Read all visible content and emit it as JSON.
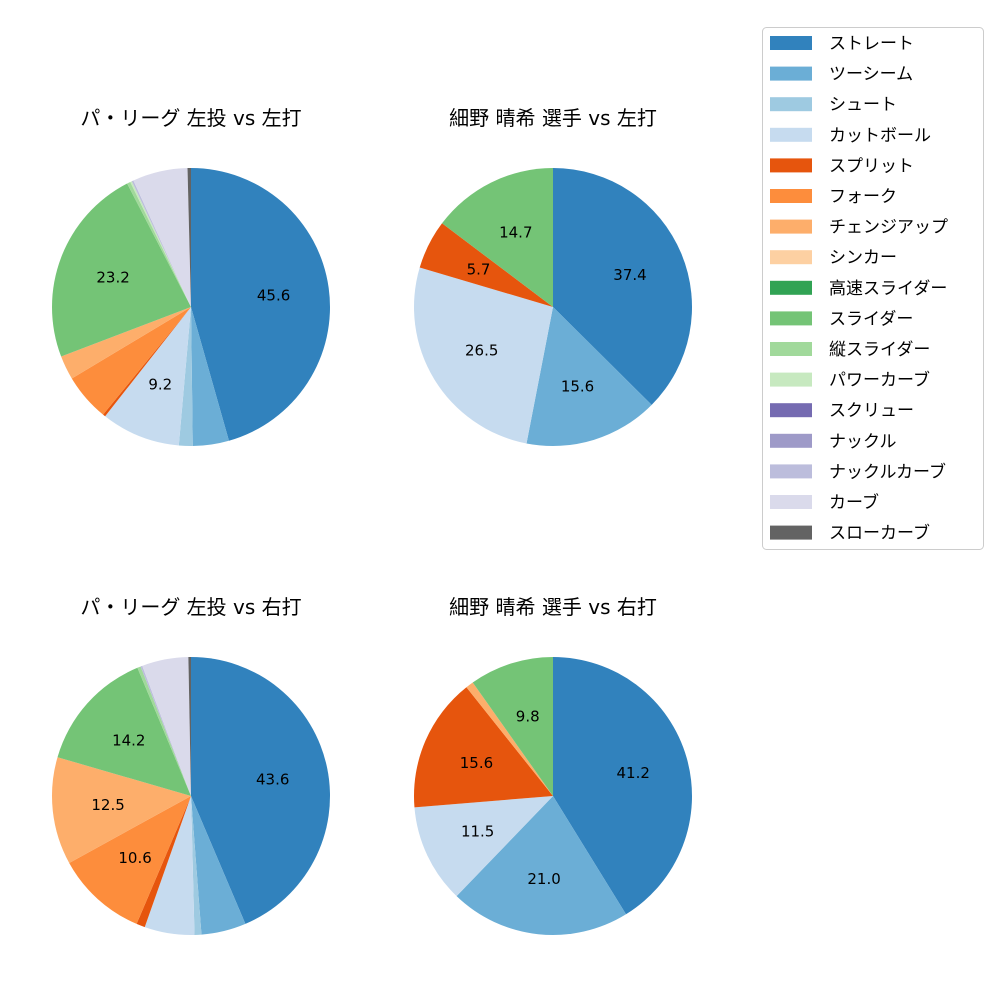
{
  "chart_data": [
    {
      "type": "pie",
      "title": "パ・リーグ 左投 vs 左打",
      "slices": [
        {
          "name": "ストレート",
          "value": 45.6,
          "label": "45.6"
        },
        {
          "name": "ツーシーム",
          "value": 4.2
        },
        {
          "name": "シュート",
          "value": 1.6
        },
        {
          "name": "カットボール",
          "value": 9.2,
          "label": "9.2"
        },
        {
          "name": "スプリット",
          "value": 0.3
        },
        {
          "name": "フォーク",
          "value": 5.5
        },
        {
          "name": "チェンジアップ",
          "value": 2.8
        },
        {
          "name": "スライダー",
          "value": 23.2,
          "label": "23.2"
        },
        {
          "name": "縦スライダー",
          "value": 0.4
        },
        {
          "name": "パワーカーブ",
          "value": 0.2
        },
        {
          "name": "ナックルカーブ",
          "value": 0.2
        },
        {
          "name": "カーブ",
          "value": 6.4
        },
        {
          "name": "スローカーブ",
          "value": 0.4
        }
      ]
    },
    {
      "type": "pie",
      "title": "細野 晴希 選手 vs 左打",
      "slices": [
        {
          "name": "ストレート",
          "value": 37.4,
          "label": "37.4"
        },
        {
          "name": "ツーシーム",
          "value": 15.6,
          "label": "15.6"
        },
        {
          "name": "カットボール",
          "value": 26.5,
          "label": "26.5"
        },
        {
          "name": "スプリット",
          "value": 5.7,
          "label": "5.7"
        },
        {
          "name": "スライダー",
          "value": 14.7,
          "label": "14.7"
        }
      ]
    },
    {
      "type": "pie",
      "title": "パ・リーグ 左投 vs 右打",
      "slices": [
        {
          "name": "ストレート",
          "value": 43.6,
          "label": "43.6"
        },
        {
          "name": "ツーシーム",
          "value": 5.2
        },
        {
          "name": "シュート",
          "value": 0.8
        },
        {
          "name": "カットボール",
          "value": 5.8
        },
        {
          "name": "スプリット",
          "value": 1.0
        },
        {
          "name": "フォーク",
          "value": 10.6,
          "label": "10.6"
        },
        {
          "name": "チェンジアップ",
          "value": 12.5,
          "label": "12.5"
        },
        {
          "name": "スライダー",
          "value": 14.2,
          "label": "14.2"
        },
        {
          "name": "縦スライダー",
          "value": 0.4
        },
        {
          "name": "ナックルカーブ",
          "value": 0.2
        },
        {
          "name": "カーブ",
          "value": 5.4
        },
        {
          "name": "スローカーブ",
          "value": 0.3
        }
      ]
    },
    {
      "type": "pie",
      "title": "細野 晴希 選手 vs 右打",
      "slices": [
        {
          "name": "ストレート",
          "value": 41.2,
          "label": "41.2"
        },
        {
          "name": "ツーシーム",
          "value": 21.0,
          "label": "21.0"
        },
        {
          "name": "カットボール",
          "value": 11.5,
          "label": "11.5"
        },
        {
          "name": "スプリット",
          "value": 15.6,
          "label": "15.6"
        },
        {
          "name": "チェンジアップ",
          "value": 0.9
        },
        {
          "name": "スライダー",
          "value": 9.8,
          "label": "9.8"
        }
      ]
    }
  ],
  "legend": {
    "placement": "upper-right",
    "items": [
      {
        "name": "ストレート",
        "color": "#3182bd"
      },
      {
        "name": "ツーシーム",
        "color": "#6baed6"
      },
      {
        "name": "シュート",
        "color": "#9ecae1"
      },
      {
        "name": "カットボール",
        "color": "#c6dbef"
      },
      {
        "name": "スプリット",
        "color": "#e6550d"
      },
      {
        "name": "フォーク",
        "color": "#fd8d3c"
      },
      {
        "name": "チェンジアップ",
        "color": "#fdae6b"
      },
      {
        "name": "シンカー",
        "color": "#fdd0a2"
      },
      {
        "name": "高速スライダー",
        "color": "#31a354"
      },
      {
        "name": "スライダー",
        "color": "#74c476"
      },
      {
        "name": "縦スライダー",
        "color": "#a1d99b"
      },
      {
        "name": "パワーカーブ",
        "color": "#c7e9c0"
      },
      {
        "name": "スクリュー",
        "color": "#756bb1"
      },
      {
        "name": "ナックル",
        "color": "#9e9ac8"
      },
      {
        "name": "ナックルカーブ",
        "color": "#bcbddc"
      },
      {
        "name": "カーブ",
        "color": "#dadaeb"
      },
      {
        "name": "スローカーブ",
        "color": "#636363"
      }
    ]
  }
}
